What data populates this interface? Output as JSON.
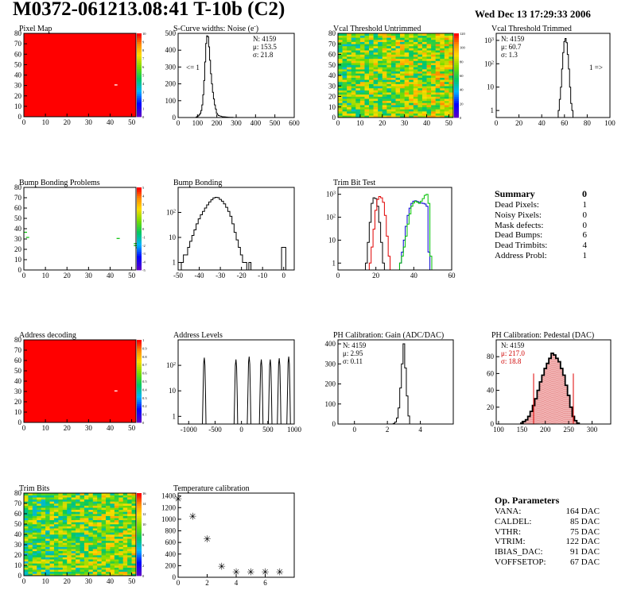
{
  "header": {
    "title": "M0372-061213.08:41 T-10b (C2)",
    "timestamp": "Wed Dec 13 17:29:33 2006"
  },
  "colors": {
    "hist_black": "#000000",
    "hist_red": "#e00000",
    "hist_blue": "#0000d0",
    "hist_green": "#00c000",
    "map_fill": "#ff0000",
    "stats_red": "#d00000"
  },
  "chart_data": [
    {
      "id": "pixel-map",
      "type": "heatmap",
      "title": "Pixel Map",
      "xlim": [
        0,
        52
      ],
      "ylim": [
        0,
        80
      ],
      "xticks": [
        0,
        10,
        20,
        30,
        40,
        50
      ],
      "yticks": [
        0,
        10,
        20,
        30,
        40,
        50,
        60,
        70,
        80
      ],
      "zlim": [
        0,
        10
      ],
      "palette_ticks": [
        0,
        1,
        2,
        3,
        4,
        5,
        6,
        7,
        8,
        9,
        10
      ],
      "uniform_value": 10,
      "mark": {
        "col": 42,
        "row": 30,
        "value": 0
      }
    },
    {
      "id": "scurve-noise",
      "type": "line",
      "title": "S-Curve widths: Noise (e",
      "title_sup": "-",
      "title_suffix": ")",
      "xlim": [
        0,
        600
      ],
      "ylim": [
        0,
        500
      ],
      "xticks": [
        0,
        100,
        200,
        300,
        400,
        500,
        600
      ],
      "yticks": [
        0,
        100,
        200,
        300,
        400,
        500
      ],
      "x": [
        90,
        95,
        100,
        105,
        110,
        115,
        120,
        125,
        130,
        135,
        140,
        145,
        150,
        155,
        160,
        165,
        170,
        175,
        180,
        185,
        190,
        195,
        200,
        210,
        220,
        230,
        240,
        250,
        260,
        270,
        280,
        290
      ],
      "y": [
        0,
        3,
        6,
        10,
        16,
        25,
        42,
        75,
        135,
        220,
        330,
        440,
        485,
        480,
        420,
        340,
        260,
        200,
        150,
        110,
        75,
        50,
        25,
        12,
        8,
        5,
        4,
        3,
        2,
        1,
        1,
        0
      ],
      "stats": {
        "N": "N: 4159",
        "mu": "μ: 153.5",
        "sigma": "σ: 21.8"
      },
      "annotation": "<= 1"
    },
    {
      "id": "vcal-untrimmed",
      "type": "heatmap",
      "title": "Vcal Threshold Untrimmed",
      "xlim": [
        0,
        52
      ],
      "ylim": [
        0,
        80
      ],
      "xticks": [
        0,
        10,
        20,
        30,
        40,
        50
      ],
      "yticks": [
        0,
        10,
        20,
        30,
        40,
        50,
        60,
        70,
        80
      ],
      "zlim": [
        0,
        120
      ],
      "palette_ticks": [
        0,
        20,
        40,
        60,
        80,
        100,
        120
      ],
      "distribution": "noise",
      "value_range": [
        40,
        95
      ]
    },
    {
      "id": "vcal-trimmed",
      "type": "line",
      "title": "Vcal Threshold Trimmed",
      "xlim": [
        0,
        100
      ],
      "ylim_log": [
        0.5,
        2000
      ],
      "log_y": true,
      "xticks": [
        0,
        20,
        40,
        60,
        80,
        100
      ],
      "yticks_log": [
        1,
        10,
        100,
        1000
      ],
      "x": [
        55,
        56,
        57,
        58,
        59,
        60,
        61,
        62,
        63,
        64,
        65,
        66,
        67
      ],
      "y": [
        1,
        3,
        10,
        60,
        300,
        900,
        1200,
        800,
        250,
        60,
        10,
        2,
        1
      ],
      "stats": {
        "N": "N: 4159",
        "mu": "μ: 60.7",
        "sigma": "σ:  1.3"
      },
      "annotation": "1 =>"
    },
    {
      "id": "bump-problems",
      "type": "heatmap",
      "title": "Bump Bonding Problems",
      "xlim": [
        0,
        52
      ],
      "ylim": [
        0,
        80
      ],
      "xticks": [
        0,
        10,
        20,
        30,
        40,
        50
      ],
      "yticks": [
        0,
        10,
        20,
        30,
        40,
        50,
        60,
        70,
        80
      ],
      "zlim": [
        -5,
        5
      ],
      "palette_ticks": [
        -5,
        -4,
        -3,
        -2,
        -1,
        0,
        1,
        2,
        3,
        4,
        5
      ],
      "marks": [
        {
          "col": 0,
          "row": 37
        },
        {
          "col": 1,
          "row": 32
        },
        {
          "col": 43,
          "row": 31
        },
        {
          "col": 51,
          "row": 26
        },
        {
          "col": 51,
          "row": 24
        },
        {
          "col": 52,
          "row": 22
        }
      ]
    },
    {
      "id": "bump-bonding",
      "type": "line",
      "title": "Bump Bonding",
      "xlim": [
        -50,
        5
      ],
      "ylim_log": [
        0.5,
        1000
      ],
      "log_y": true,
      "xticks": [
        -50,
        -40,
        -30,
        -20,
        -10,
        0
      ],
      "yticks_log": [
        1,
        10,
        100
      ],
      "x": [
        -48,
        -47,
        -46,
        -45,
        -44,
        -43,
        -42,
        -41,
        -40,
        -39,
        -38,
        -37,
        -36,
        -35,
        -34,
        -33,
        -32,
        -31,
        -30,
        -29,
        -28,
        -27,
        -26,
        -25,
        -24,
        -23,
        -22,
        -21,
        -20,
        -19,
        -18,
        -17,
        -16
      ],
      "y": [
        1,
        2,
        2,
        4,
        7,
        12,
        20,
        35,
        55,
        80,
        110,
        150,
        200,
        260,
        320,
        380,
        400,
        390,
        330,
        280,
        220,
        160,
        110,
        70,
        35,
        16,
        8,
        4,
        2,
        1,
        1,
        0.1,
        1
      ],
      "extra_x": [
        0
      ],
      "extra_y": [
        4
      ]
    },
    {
      "id": "trim-bit-test",
      "type": "line",
      "title": "Trim Bit Test",
      "xlim": [
        0,
        60
      ],
      "ylim_log": [
        0.5,
        2000
      ],
      "log_y": true,
      "xticks": [
        0,
        20,
        40,
        60
      ],
      "yticks_log": [
        1,
        10,
        100,
        1000
      ],
      "series": [
        {
          "color_key": "hist_black",
          "x": [
            15,
            16,
            17,
            18,
            19,
            20,
            21,
            22,
            23,
            24
          ],
          "y": [
            1,
            8,
            60,
            400,
            700,
            650,
            300,
            60,
            8,
            1
          ]
        },
        {
          "color_key": "hist_red",
          "x": [
            17,
            18,
            19,
            20,
            21,
            22,
            23,
            24,
            25,
            26,
            27
          ],
          "y": [
            1,
            5,
            30,
            200,
            600,
            800,
            700,
            450,
            120,
            15,
            2
          ]
        },
        {
          "color_key": "hist_blue",
          "x": [
            33,
            34,
            35,
            36,
            37,
            38,
            39,
            40,
            41,
            42,
            43,
            44,
            45,
            46,
            47,
            48
          ],
          "y": [
            1,
            3,
            10,
            40,
            120,
            250,
            400,
            500,
            520,
            480,
            450,
            420,
            400,
            380,
            300,
            3
          ]
        },
        {
          "color_key": "hist_green",
          "x": [
            33,
            34,
            35,
            36,
            37,
            38,
            39,
            40,
            41,
            42,
            43,
            44,
            45,
            46,
            47,
            48,
            49
          ],
          "y": [
            1,
            2,
            5,
            15,
            50,
            140,
            300,
            420,
            500,
            450,
            400,
            500,
            650,
            900,
            1000,
            400,
            2
          ]
        }
      ]
    },
    {
      "id": "address-decoding",
      "type": "heatmap",
      "title": "Address decoding",
      "xlim": [
        0,
        52
      ],
      "ylim": [
        0,
        80
      ],
      "xticks": [
        0,
        10,
        20,
        30,
        40,
        50
      ],
      "yticks": [
        0,
        10,
        20,
        30,
        40,
        50,
        60,
        70,
        80
      ],
      "zlim": [
        0,
        1
      ],
      "palette_ticks": [
        0,
        0.1,
        0.2,
        0.3,
        0.4,
        0.5,
        0.6,
        0.7,
        0.8,
        0.9,
        1
      ],
      "uniform_value": 1,
      "mark": {
        "col": 42,
        "row": 30,
        "value": 0
      }
    },
    {
      "id": "address-levels",
      "type": "line",
      "title": "Address Levels",
      "xlim": [
        -1200,
        1000
      ],
      "ylim_log": [
        0.5,
        1000
      ],
      "log_y": true,
      "xticks": [
        -1000,
        -500,
        0,
        500,
        1000
      ],
      "yticks_log": [
        1,
        10,
        100
      ],
      "spikes": [
        {
          "x": -700,
          "peak": 200
        },
        {
          "x": -100,
          "peak": 170
        },
        {
          "x": 150,
          "peak": 220
        },
        {
          "x": 380,
          "peak": 170
        },
        {
          "x": 550,
          "peak": 170
        },
        {
          "x": 720,
          "peak": 190
        },
        {
          "x": 900,
          "peak": 220
        }
      ]
    },
    {
      "id": "ph-gain",
      "type": "line",
      "title": "PH Calibration: Gain (ADC/DAC)",
      "xlim": [
        -1,
        6
      ],
      "ylim": [
        0,
        420
      ],
      "xticks": [
        0,
        2,
        4
      ],
      "yticks": [
        0,
        100,
        200,
        300,
        400
      ],
      "x": [
        2.3,
        2.4,
        2.5,
        2.6,
        2.7,
        2.8,
        2.9,
        3.0,
        3.1,
        3.2,
        3.3,
        3.4
      ],
      "y": [
        0,
        3,
        10,
        30,
        80,
        180,
        300,
        400,
        280,
        140,
        40,
        0
      ],
      "stats": {
        "N": "N: 4159",
        "mu": "μ: 2.95",
        "sigma": "σ: 0.11"
      }
    },
    {
      "id": "ph-pedestal",
      "type": "line",
      "title": "PH Calibration: Pedestal (DAC)",
      "xlim": [
        95,
        340
      ],
      "ylim": [
        0,
        100
      ],
      "xticks": [
        100,
        150,
        200,
        250,
        300
      ],
      "yticks": [
        0,
        20,
        40,
        60,
        80
      ],
      "x": [
        150,
        155,
        160,
        165,
        170,
        175,
        180,
        185,
        190,
        195,
        200,
        205,
        210,
        215,
        220,
        225,
        230,
        235,
        240,
        245,
        250,
        255,
        260,
        265,
        270
      ],
      "y": [
        1,
        3,
        5,
        9,
        15,
        22,
        30,
        40,
        50,
        58,
        66,
        72,
        78,
        84,
        82,
        78,
        74,
        66,
        58,
        46,
        34,
        20,
        9,
        4,
        1
      ],
      "red_markers": [
        175,
        260
      ],
      "stats": {
        "N": "N: 4159",
        "mu": "μ: 217.0",
        "sigma": "σ: 18.8"
      }
    },
    {
      "id": "trim-bits",
      "type": "heatmap",
      "title": "Trim Bits",
      "xlim": [
        0,
        52
      ],
      "ylim": [
        0,
        80
      ],
      "xticks": [
        0,
        10,
        20,
        30,
        40,
        50
      ],
      "yticks": [
        0,
        10,
        20,
        30,
        40,
        50,
        60,
        70,
        80
      ],
      "zlim": [
        0,
        16
      ],
      "palette_ticks": [
        0,
        2,
        4,
        6,
        8,
        10,
        12,
        14,
        16
      ],
      "distribution": "noise",
      "value_range": [
        5,
        12
      ]
    },
    {
      "id": "temperature-calibration",
      "type": "scatter",
      "title": "Temperature calibration",
      "xlim": [
        0,
        8
      ],
      "ylim": [
        0,
        1450
      ],
      "xticks": [
        0,
        2,
        4,
        6
      ],
      "yticks": [
        0,
        200,
        400,
        600,
        800,
        1000,
        1200,
        1400
      ],
      "x": [
        0,
        1,
        2,
        3,
        4,
        5,
        6,
        7
      ],
      "y": [
        1360,
        1060,
        670,
        200,
        100,
        100,
        100,
        100
      ]
    }
  ],
  "summary": {
    "title": "Summary",
    "total": "0",
    "rows": [
      {
        "label": "Dead Pixels:",
        "value": "1"
      },
      {
        "label": "Noisy Pixels:",
        "value": "0"
      },
      {
        "label": "Mask defects:",
        "value": "0"
      },
      {
        "label": "Dead Bumps:",
        "value": "6"
      },
      {
        "label": "Dead Trimbits:",
        "value": "4"
      },
      {
        "label": "Address Probl:",
        "value": "1"
      }
    ]
  },
  "op_params": {
    "title": "Op. Parameters",
    "rows": [
      {
        "label": "VANA:",
        "value": "164 DAC"
      },
      {
        "label": "CALDEL:",
        "value": "85 DAC"
      },
      {
        "label": "VTHR:",
        "value": "75 DAC"
      },
      {
        "label": "VTRIM:",
        "value": "122 DAC"
      },
      {
        "label": "IBIAS_DAC:",
        "value": "91 DAC"
      },
      {
        "label": "VOFFSETOP:",
        "value": "67 DAC"
      }
    ]
  }
}
